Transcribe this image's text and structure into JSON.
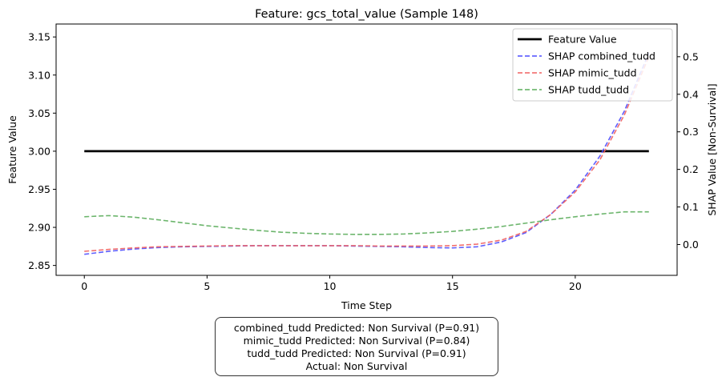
{
  "chart_data": {
    "type": "line",
    "title": "Feature: gcs_total_value (Sample 148)",
    "xlabel": "Time Step",
    "ylabel_left": "Feature Value",
    "ylabel_right": "SHAP Value [Non-Survival]",
    "xlim": [
      -1.15,
      24.15
    ],
    "ylim_left": [
      2.837,
      3.167
    ],
    "ylim_right": [
      -0.082,
      0.587
    ],
    "x_ticks": [
      0,
      5,
      10,
      15,
      20
    ],
    "y_ticks_left": [
      2.85,
      2.9,
      2.95,
      3.0,
      3.05,
      3.1,
      3.15
    ],
    "y_ticks_right": [
      0.0,
      0.1,
      0.2,
      0.3,
      0.4,
      0.5
    ],
    "legend_position": "upper-right",
    "grid": false,
    "x": [
      0,
      1,
      2,
      3,
      4,
      5,
      6,
      7,
      8,
      9,
      10,
      11,
      12,
      13,
      14,
      15,
      16,
      17,
      18,
      19,
      20,
      21,
      22,
      23
    ],
    "series": [
      {
        "name": "Feature Value",
        "axis": "left",
        "color": "#000000",
        "style": "solid",
        "values": [
          3,
          3,
          3,
          3,
          3,
          3,
          3,
          3,
          3,
          3,
          3,
          3,
          3,
          3,
          3,
          3,
          3,
          3,
          3,
          3,
          3,
          3,
          3,
          3
        ]
      },
      {
        "name": "SHAP combined_tudd",
        "axis": "right",
        "color": "#4d4dff",
        "style": "dashed",
        "values": [
          -0.026,
          -0.018,
          -0.012,
          -0.008,
          -0.006,
          -0.005,
          -0.004,
          -0.003,
          -0.003,
          -0.003,
          -0.003,
          -0.004,
          -0.005,
          -0.006,
          -0.008,
          -0.009,
          -0.006,
          0.007,
          0.032,
          0.08,
          0.145,
          0.235,
          0.355,
          0.51
        ]
      },
      {
        "name": "SHAP mimic_tudd",
        "axis": "right",
        "color": "#f06060",
        "style": "dashed",
        "values": [
          -0.018,
          -0.013,
          -0.009,
          -0.006,
          -0.005,
          -0.004,
          -0.003,
          -0.003,
          -0.003,
          -0.003,
          -0.003,
          -0.003,
          -0.004,
          -0.004,
          -0.004,
          -0.003,
          0.001,
          0.012,
          0.035,
          0.08,
          0.14,
          0.225,
          0.345,
          0.5
        ]
      },
      {
        "name": "SHAP tudd_tudd",
        "axis": "right",
        "color": "#5cad5c",
        "style": "dashed",
        "values": [
          0.074,
          0.077,
          0.073,
          0.066,
          0.058,
          0.05,
          0.044,
          0.038,
          0.033,
          0.03,
          0.028,
          0.027,
          0.027,
          0.028,
          0.031,
          0.035,
          0.041,
          0.048,
          0.057,
          0.066,
          0.074,
          0.081,
          0.087,
          0.087
        ]
      }
    ]
  },
  "prediction_box": {
    "line1": "combined_tudd Predicted: Non Survival (P=0.91)",
    "line2": "mimic_tudd Predicted: Non Survival (P=0.84)",
    "line3": "tudd_tudd Predicted: Non Survival (P=0.91)",
    "line4": "Actual: Non Survival"
  }
}
